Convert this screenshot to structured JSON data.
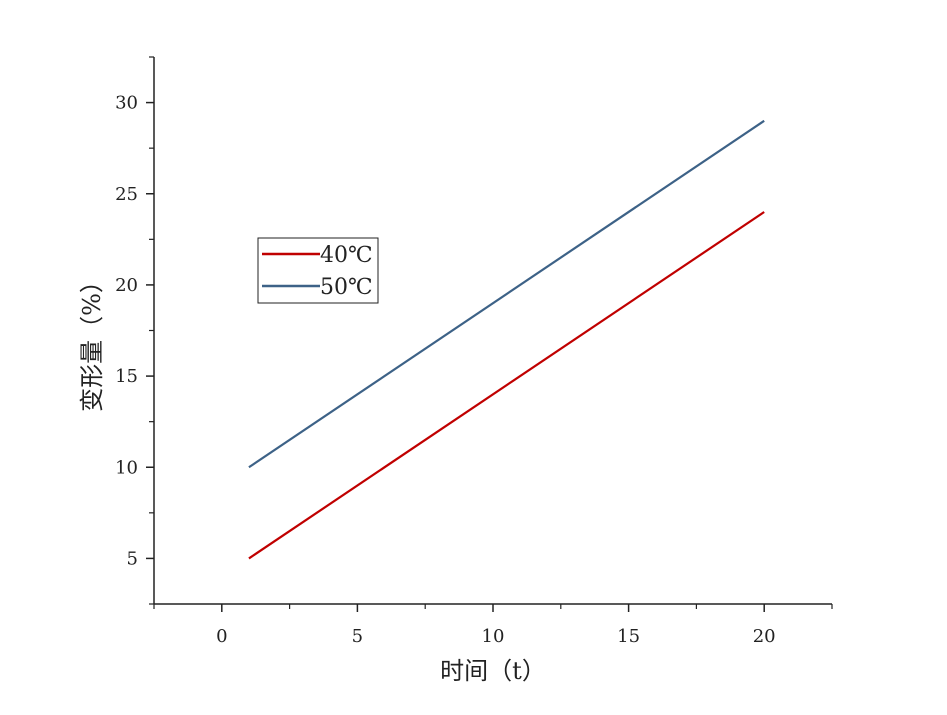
{
  "chart_data": {
    "type": "line",
    "title": "",
    "xlabel": "时间（t）",
    "ylabel": "变形量（%）",
    "xlim": [
      -2.5,
      22.5
    ],
    "ylim": [
      2.5,
      32.5
    ],
    "xticks": [
      0,
      5,
      10,
      15,
      20
    ],
    "yticks": [
      5,
      10,
      15,
      20,
      25,
      30
    ],
    "xtick_labels": [
      "0",
      "5",
      "10",
      "15",
      "20"
    ],
    "ytick_labels": [
      "5",
      "10",
      "15",
      "20",
      "25",
      "30"
    ],
    "grid": false,
    "legend_position": "upper-left",
    "series": [
      {
        "name": "40℃",
        "color": "#c00000",
        "x": [
          1,
          20
        ],
        "y": [
          5,
          24
        ]
      },
      {
        "name": "50℃",
        "color": "#3d6287",
        "x": [
          1,
          20
        ],
        "y": [
          10,
          29
        ]
      }
    ]
  }
}
